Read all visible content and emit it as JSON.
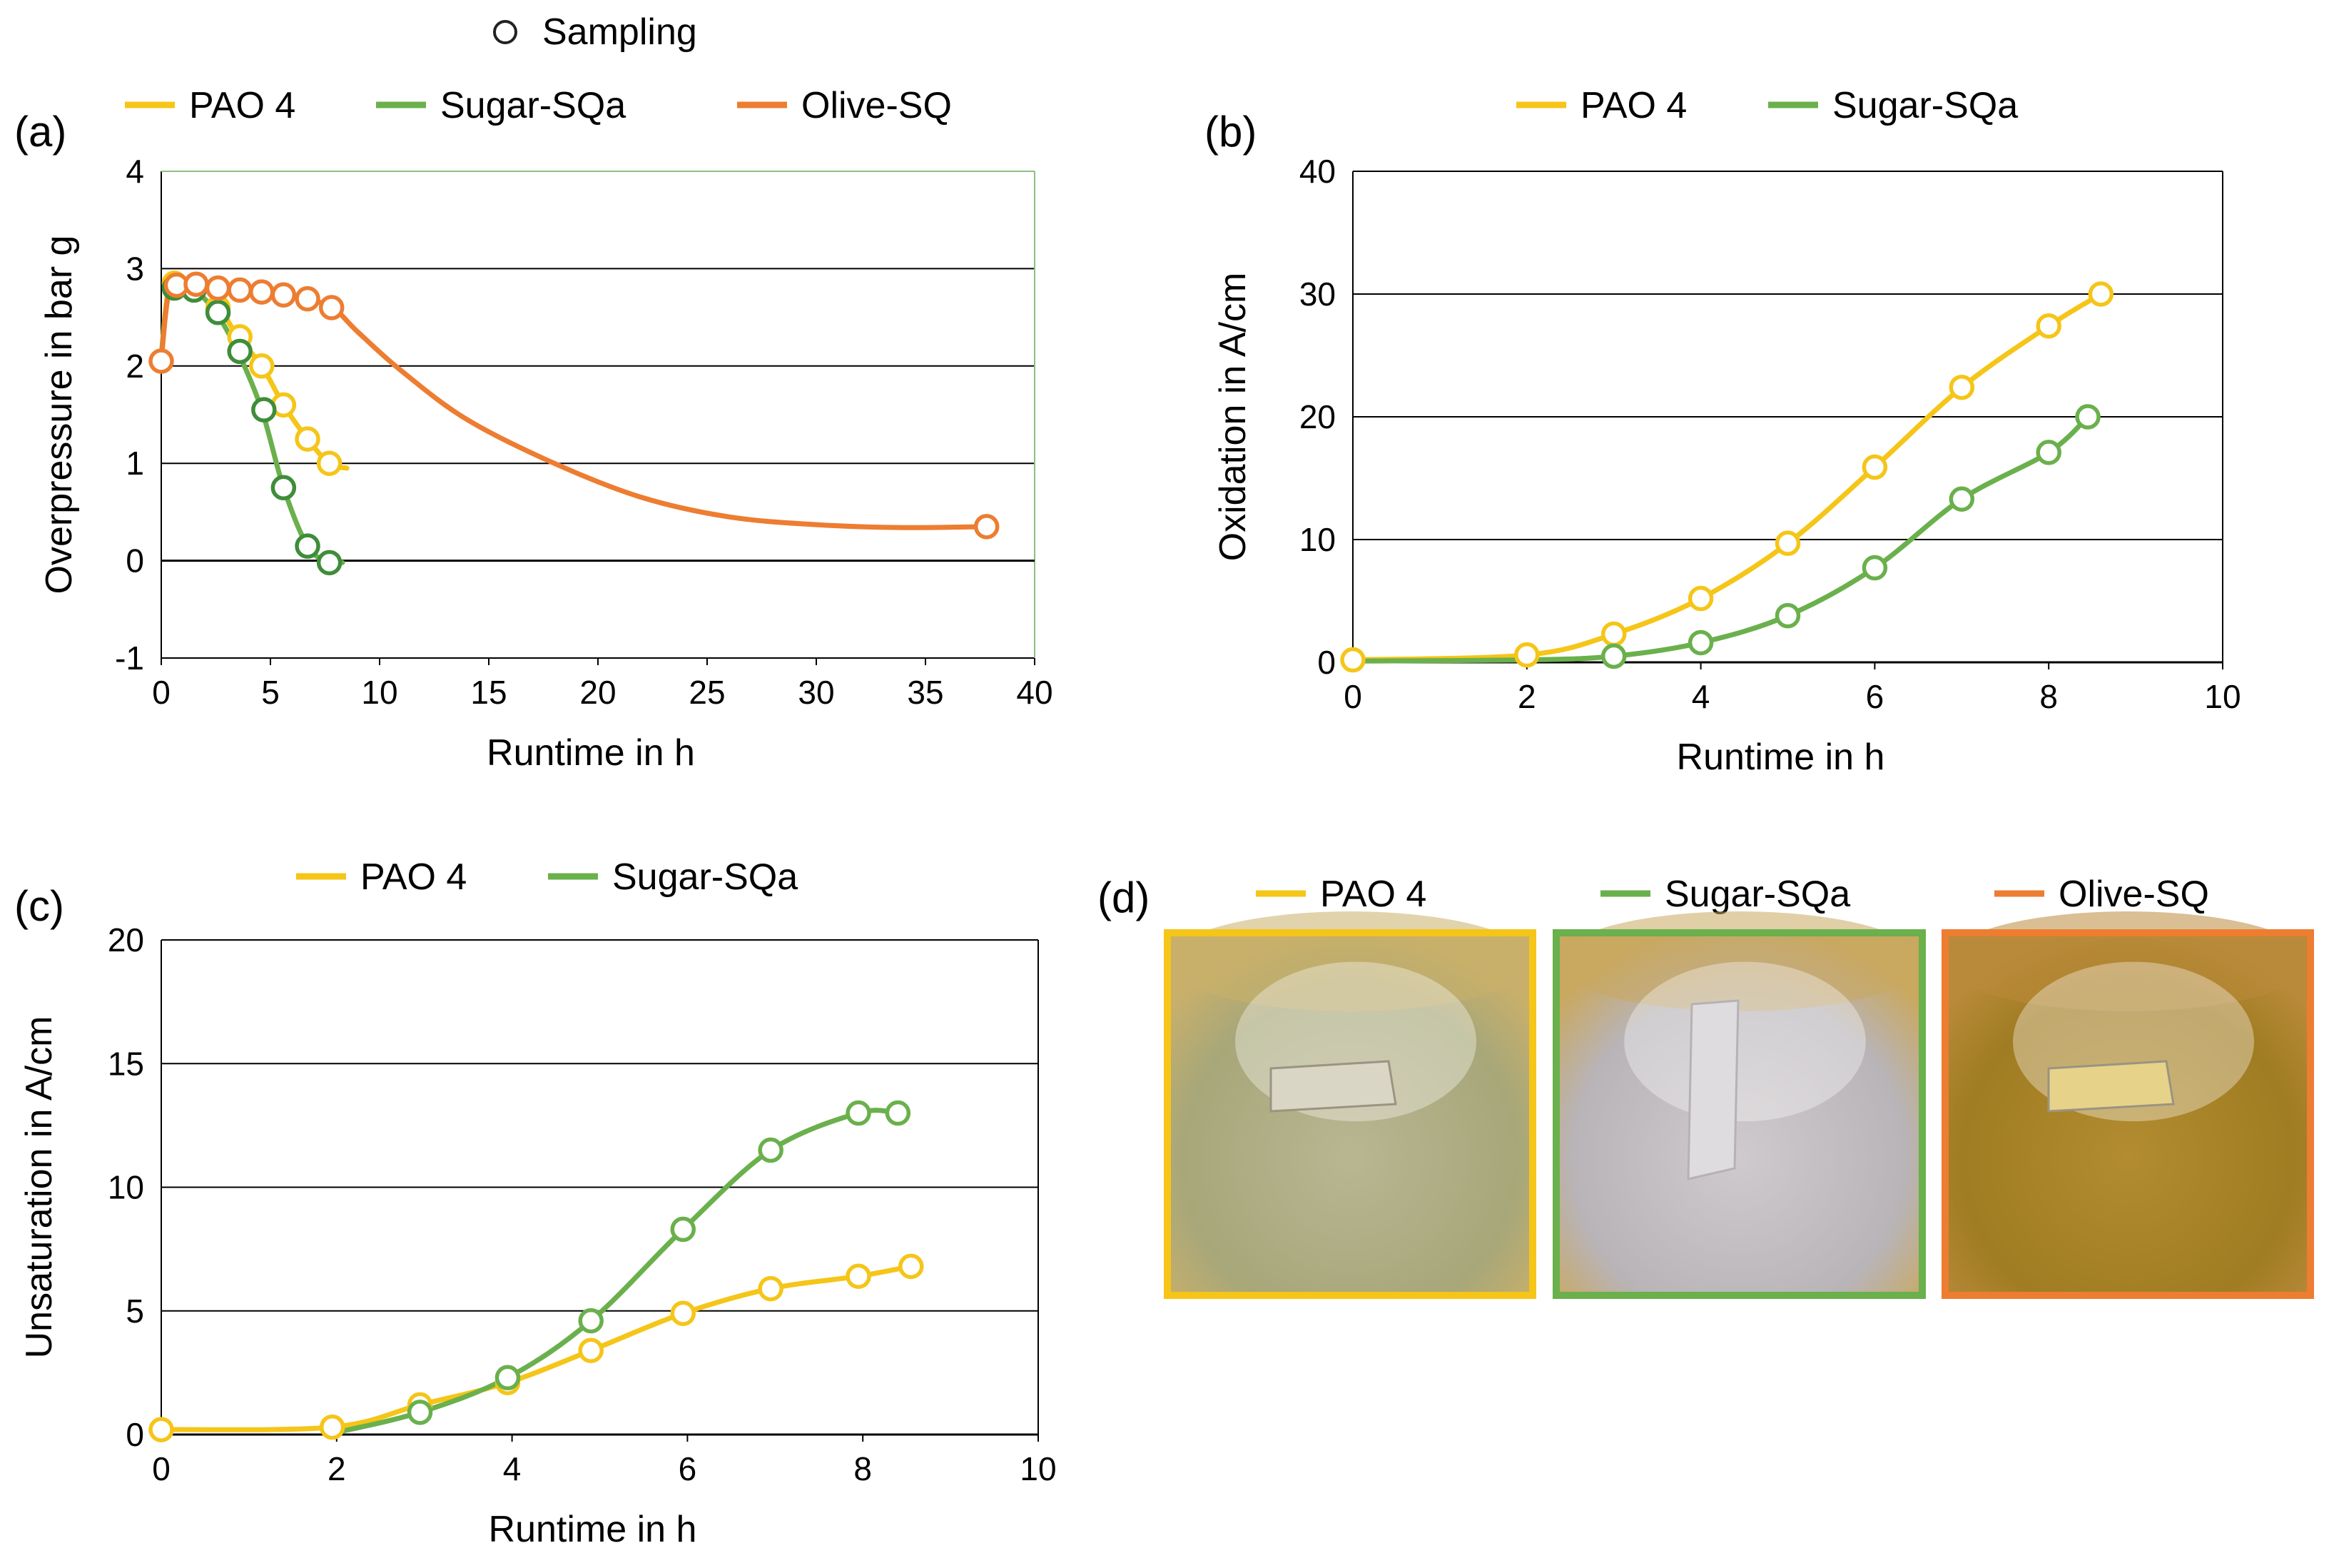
{
  "figure": {
    "sampling_legend": "Sampling",
    "colors": {
      "pao4": "#f5c518",
      "sugar": "#6ab04c",
      "sugar_dark": "#3f8d3a",
      "olive": "#ed7d31",
      "grid": "#000000",
      "frame_a": "#8fbf7f"
    }
  },
  "chart_data": [
    {
      "id": "a",
      "panel_label": "(a)",
      "type": "line",
      "title": "",
      "xlabel": "Runtime in h",
      "ylabel": "Overpressure in bar g",
      "xlim": [
        0,
        40
      ],
      "ylim": [
        -1,
        4
      ],
      "xticks": [
        0,
        5,
        10,
        15,
        20,
        25,
        30,
        35,
        40
      ],
      "yticks": [
        -1,
        0,
        1,
        2,
        3,
        4
      ],
      "grid": "horizontal",
      "legend": "top",
      "series": [
        {
          "name": "PAO 4",
          "color": "#f5c518",
          "curve_x": [
            0,
            0.3,
            0.7,
            1.2,
            2,
            2.7,
            3.5,
            4.6,
            5.6,
            6.7,
            7.7,
            8.5
          ],
          "curve_y": [
            2.1,
            2.75,
            2.85,
            2.85,
            2.8,
            2.6,
            2.3,
            2.0,
            1.6,
            1.25,
            1.0,
            0.95
          ],
          "points_x": [
            0.6,
            1.6,
            2.6,
            3.6,
            4.6,
            5.6,
            6.7,
            7.7
          ],
          "points_y": [
            2.85,
            2.82,
            2.6,
            2.3,
            2.0,
            1.6,
            1.25,
            1.0
          ]
        },
        {
          "name": "Sugar-SQa",
          "color": "#6ab04c",
          "marker_color": "#3f8d3a",
          "curve_x": [
            0,
            0.3,
            0.7,
            1.5,
            2.5,
            3.5,
            4.6,
            5.6,
            6.7,
            7.7,
            8.3
          ],
          "curve_y": [
            2.1,
            2.7,
            2.8,
            2.78,
            2.55,
            2.15,
            1.55,
            0.75,
            0.15,
            -0.02,
            -0.02
          ],
          "points_x": [
            0.6,
            1.5,
            2.6,
            3.6,
            4.7,
            5.6,
            6.7,
            7.7
          ],
          "points_y": [
            2.8,
            2.78,
            2.55,
            2.15,
            1.55,
            0.75,
            0.15,
            -0.02
          ]
        },
        {
          "name": "Olive-SQ",
          "color": "#ed7d31",
          "curve_x": [
            0,
            0.3,
            0.7,
            1.6,
            3,
            4.5,
            6,
            7.8,
            9,
            11,
            14,
            18,
            22,
            26,
            30,
            34,
            37.8
          ],
          "curve_y": [
            2.05,
            2.7,
            2.83,
            2.84,
            2.8,
            2.77,
            2.73,
            2.6,
            2.35,
            1.95,
            1.45,
            1.0,
            0.65,
            0.45,
            0.37,
            0.34,
            0.35
          ],
          "points_x": [
            0,
            0.7,
            1.6,
            2.6,
            3.6,
            4.6,
            5.6,
            6.7,
            7.8,
            37.8
          ],
          "points_y": [
            2.05,
            2.83,
            2.84,
            2.8,
            2.78,
            2.76,
            2.73,
            2.69,
            2.6,
            0.35
          ]
        }
      ]
    },
    {
      "id": "b",
      "panel_label": "(b)",
      "type": "line",
      "title": "",
      "xlabel": "Runtime in h",
      "ylabel": "Oxidation in A/cm",
      "xlim": [
        0,
        10
      ],
      "ylim": [
        0,
        40
      ],
      "xticks": [
        0,
        2,
        4,
        6,
        8,
        10
      ],
      "yticks": [
        0,
        10,
        20,
        30,
        40
      ],
      "grid": "horizontal",
      "legend": "top",
      "series": [
        {
          "name": "PAO 4",
          "color": "#f5c518",
          "curve_x": [
            0,
            2,
            3,
            4,
            5,
            6,
            7,
            8,
            8.6
          ],
          "curve_y": [
            0.2,
            0.6,
            2.3,
            5.2,
            9.7,
            15.9,
            22.4,
            27.4,
            30
          ],
          "points_x": [
            0,
            2,
            3,
            4,
            5,
            6,
            7,
            8,
            8.6
          ],
          "points_y": [
            0.2,
            0.6,
            2.3,
            5.2,
            9.7,
            15.9,
            22.4,
            27.4,
            30
          ]
        },
        {
          "name": "Sugar-SQa",
          "color": "#6ab04c",
          "curve_x": [
            0,
            2,
            3,
            4,
            5,
            6,
            7,
            8,
            8.45
          ],
          "curve_y": [
            0.1,
            0.2,
            0.5,
            1.6,
            3.8,
            7.7,
            13.3,
            17.1,
            20.0
          ],
          "points_x": [
            3,
            4,
            5,
            6,
            7,
            8,
            8.45
          ],
          "points_y": [
            0.5,
            1.6,
            3.8,
            7.7,
            13.3,
            17.1,
            20.0
          ]
        }
      ]
    },
    {
      "id": "c",
      "panel_label": "(c)",
      "type": "line",
      "title": "",
      "xlabel": "Runtime in h",
      "ylabel": "Unsaturation in A/cm",
      "xlim": [
        0,
        10
      ],
      "ylim": [
        0,
        20
      ],
      "xticks": [
        0,
        2,
        4,
        6,
        8,
        10
      ],
      "yticks": [
        0,
        5,
        10,
        15,
        20
      ],
      "grid": "horizontal",
      "legend": "top",
      "series": [
        {
          "name": "PAO 4",
          "color": "#f5c518",
          "curve_x": [
            0,
            1.95,
            2.95,
            3.95,
            4.9,
            5.95,
            6.95,
            7.95,
            8.55
          ],
          "curve_y": [
            0.2,
            0.3,
            1.2,
            2.1,
            3.4,
            4.9,
            5.9,
            6.4,
            6.8
          ],
          "points_x": [
            0,
            1.95,
            2.95,
            3.95,
            4.9,
            5.95,
            6.95,
            7.95,
            8.55
          ],
          "points_y": [
            0.2,
            0.3,
            1.2,
            2.1,
            3.4,
            4.9,
            5.9,
            6.4,
            6.8
          ]
        },
        {
          "name": "Sugar-SQa",
          "color": "#6ab04c",
          "curve_x": [
            1.95,
            2.95,
            3.95,
            4.9,
            5.95,
            6.95,
            7.95,
            8.4
          ],
          "curve_y": [
            0.05,
            0.9,
            2.3,
            4.6,
            8.3,
            11.5,
            13.0,
            13.0
          ],
          "points_x": [
            2.95,
            3.95,
            4.9,
            5.95,
            6.95,
            7.95,
            8.4
          ],
          "points_y": [
            0.9,
            2.3,
            4.6,
            8.3,
            11.5,
            13.0,
            13.0
          ]
        }
      ]
    }
  ],
  "panel_d": {
    "panel_label": "(d)",
    "legend": [
      {
        "name": "PAO 4",
        "color": "#f5c518"
      },
      {
        "name": "Sugar-SQa",
        "color": "#6ab04c"
      },
      {
        "name": "Olive-SQ",
        "color": "#ed7d31"
      }
    ],
    "photos": [
      {
        "name": "pao4-sample-photo",
        "frame_color": "#f5c518",
        "rim": "#c9b06a",
        "liquid": "#a7a77a",
        "center": "#b9b692",
        "specimen": "#d9d6c6"
      },
      {
        "name": "sugar-sample-photo",
        "frame_color": "#6ab04c",
        "rim": "#c9a860",
        "liquid": "#b8b4b8",
        "center": "#cfcacd",
        "specimen": "#dedcde"
      },
      {
        "name": "olive-sample-photo",
        "frame_color": "#ed7d31",
        "rim": "#b98a3a",
        "liquid": "#a07c22",
        "center": "#b38c30",
        "specimen": "#e7d28a"
      }
    ]
  }
}
